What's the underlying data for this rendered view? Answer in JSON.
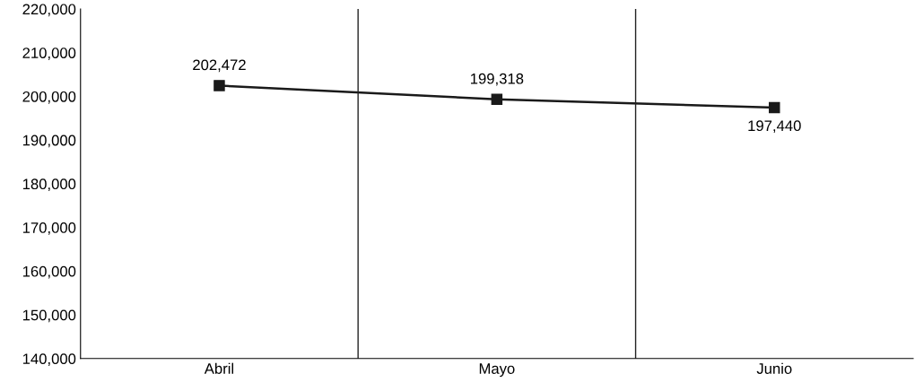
{
  "chart_data": {
    "type": "line",
    "categories": [
      "Abril",
      "Mayo",
      "Junio"
    ],
    "series": [
      {
        "color": "#1a1a1a",
        "values": [
          202472,
          199318,
          197440
        ],
        "value_labels": [
          "202,472",
          "199,318",
          "197,440"
        ]
      }
    ],
    "ylim": [
      140000,
      220000
    ],
    "yticks": [
      {
        "value": 140000,
        "label": "140,000"
      },
      {
        "value": 150000,
        "label": "150,000"
      },
      {
        "value": 160000,
        "label": "160,000"
      },
      {
        "value": 170000,
        "label": "170,000"
      },
      {
        "value": 180000,
        "label": "180,000"
      },
      {
        "value": 190000,
        "label": "190,000"
      },
      {
        "value": 200000,
        "label": "200,000"
      },
      {
        "value": 210000,
        "label": "210,000"
      },
      {
        "value": 220000,
        "label": "220,000"
      }
    ],
    "grid": "x",
    "marker": "square",
    "line_style": "solid"
  }
}
